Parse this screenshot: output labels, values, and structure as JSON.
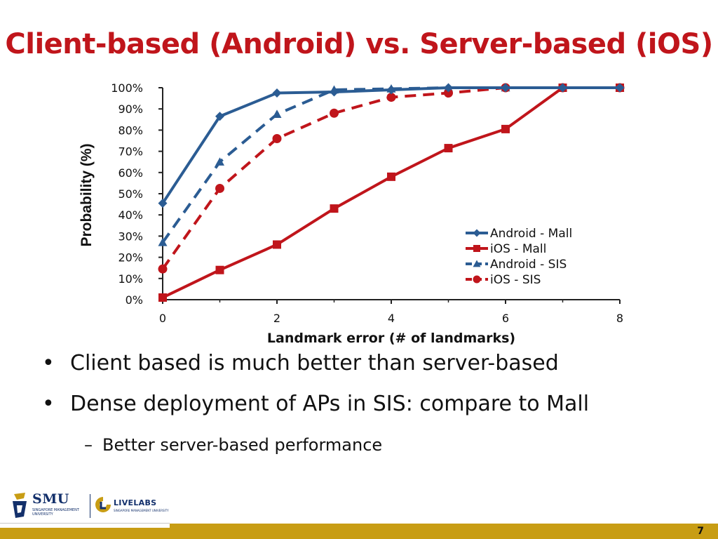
{
  "slide": {
    "title": "Client-based (Android) vs. Server-based (iOS)",
    "bullets": [
      "Client based is much better than server-based",
      "Dense deployment of APs in SIS: compare to Mall"
    ],
    "sub_bullets": [
      "Better server-based performance"
    ],
    "bullet_char": "•",
    "sub_bullet_char": "–",
    "page_number": "7",
    "logos": {
      "smu": "SMU",
      "smu_sub": "SINGAPORE MANAGEMENT UNIVERSITY",
      "livelabs": "LIVELABS",
      "livelabs_sub": "SINGAPORE MANAGEMENT UNIVERSITY"
    },
    "colors": {
      "title": "#c0151b",
      "footer": "#c89d14",
      "blue": "#2b5c93",
      "red": "#c0151b"
    }
  },
  "chart_data": {
    "type": "line",
    "xlabel": "Landmark error (# of landmarks)",
    "ylabel": "Probability (%)",
    "xlim": [
      0,
      8
    ],
    "ylim": [
      0,
      100
    ],
    "x_ticks": [
      "0",
      "2",
      "4",
      "6",
      "8"
    ],
    "y_ticks": [
      "0%",
      "10%",
      "20%",
      "30%",
      "40%",
      "50%",
      "60%",
      "70%",
      "80%",
      "90%",
      "100%"
    ],
    "legend_position": "bottom-right",
    "series": [
      {
        "name": "Android - Mall",
        "color": "#2b5c93",
        "style": "solid",
        "marker": "diamond",
        "x": [
          0,
          1,
          2,
          3,
          4,
          5,
          6,
          7,
          8
        ],
        "values": [
          45.5,
          86.5,
          97.5,
          98,
          99,
          100,
          100,
          100,
          100
        ]
      },
      {
        "name": "iOS - Mall",
        "color": "#c0151b",
        "style": "solid",
        "marker": "square",
        "x": [
          0,
          1,
          2,
          3,
          4,
          5,
          6,
          7,
          8
        ],
        "values": [
          1,
          14,
          26,
          43,
          58,
          71.5,
          80.5,
          100,
          100
        ]
      },
      {
        "name": "Android - SIS",
        "color": "#2b5c93",
        "style": "dashed",
        "marker": "triangle",
        "x": [
          0,
          1,
          2,
          3,
          4,
          5,
          6,
          7,
          8
        ],
        "values": [
          27,
          65,
          87.5,
          99,
          99.5,
          100,
          100,
          100,
          100
        ]
      },
      {
        "name": "iOS - SIS",
        "color": "#c0151b",
        "style": "dashed",
        "marker": "circle",
        "x": [
          0,
          1,
          2,
          3,
          4,
          5,
          6,
          7,
          8
        ],
        "values": [
          14.5,
          52.5,
          76,
          88,
          95.5,
          97.5,
          100,
          100,
          100
        ]
      }
    ]
  }
}
